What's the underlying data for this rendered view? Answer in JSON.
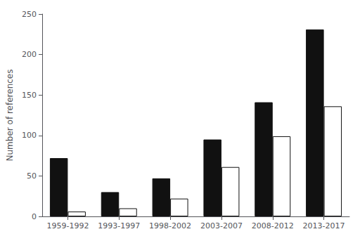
{
  "chart_data": {
    "type": "bar",
    "ylabel": "Number of references",
    "categories": [
      "1959-1992",
      "1993-1997",
      "1998-2002",
      "2003-2007",
      "2008-2012",
      "2013-2017"
    ],
    "series": [
      {
        "color": "#111111",
        "values": [
          72,
          30,
          47,
          95,
          141,
          231
        ]
      },
      {
        "color": "#ffffff",
        "values": [
          6,
          10,
          22,
          61,
          99,
          136
        ]
      }
    ],
    "ylim": [
      0,
      250
    ],
    "yticks": [
      0,
      50,
      100,
      150,
      200,
      250
    ],
    "grid": false
  }
}
